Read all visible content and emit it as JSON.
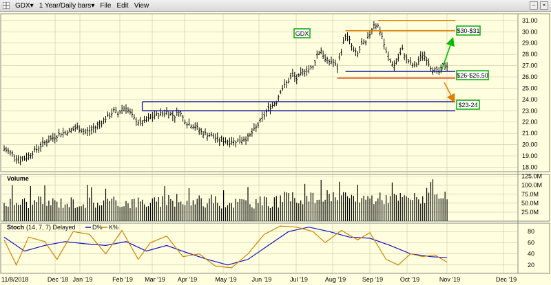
{
  "toolbar": {
    "symbol": "GDX",
    "period": "1 Year/Daily bars",
    "menus": [
      "File",
      "Edit",
      "View"
    ]
  },
  "colors": {
    "background": "#ffffe0",
    "price_bars": "#000000",
    "volume_bars": "#000000",
    "blue_line": "#1a1aa0",
    "orange_line": "#e08000",
    "red_line": "#e03000",
    "green_arrow": "#00bb00",
    "label_border": "#00aa00",
    "stoch_d": "#1010c0",
    "stoch_k": "#d08000"
  },
  "chart_data": [
    {
      "type": "ohlc",
      "title": "GDX",
      "x_labels": [
        "11/8/2018",
        "Dec '18",
        "Jan '19",
        "Feb '19",
        "Mar '19",
        "Apr '19",
        "May '19",
        "Jun '19",
        "Jul '19",
        "Aug '19",
        "Sep '19",
        "Oct '19",
        "Nov '19",
        "Dec '19"
      ],
      "y_ticks": [
        "18.00",
        "19.00",
        "20.00",
        "21.00",
        "22.00",
        "23.00",
        "24.00",
        "25.00",
        "26.00",
        "27.00",
        "28.00",
        "29.00",
        "30.00",
        "31.00"
      ],
      "ylim": [
        17.6,
        31.6
      ],
      "close_path": [
        [
          0,
          19.6
        ],
        [
          4,
          19.2
        ],
        [
          8,
          18.6
        ],
        [
          12,
          19.0
        ],
        [
          16,
          19.6
        ],
        [
          20,
          20.2
        ],
        [
          24,
          20.6
        ],
        [
          28,
          21.0
        ],
        [
          32,
          21.2
        ],
        [
          36,
          21.5
        ],
        [
          40,
          21.1
        ],
        [
          44,
          21.4
        ],
        [
          48,
          22.0
        ],
        [
          52,
          22.6
        ],
        [
          54,
          23.0
        ],
        [
          56,
          22.7
        ],
        [
          58,
          23.2
        ],
        [
          60,
          23.3
        ],
        [
          62,
          22.8
        ],
        [
          64,
          22.3
        ],
        [
          66,
          22.0
        ],
        [
          68,
          21.9
        ],
        [
          72,
          22.4
        ],
        [
          76,
          22.7
        ],
        [
          80,
          22.9
        ],
        [
          84,
          22.5
        ],
        [
          86,
          23.0
        ],
        [
          88,
          22.4
        ],
        [
          90,
          21.9
        ],
        [
          94,
          21.6
        ],
        [
          98,
          21.0
        ],
        [
          102,
          20.8
        ],
        [
          106,
          20.4
        ],
        [
          110,
          20.3
        ],
        [
          114,
          20.3
        ],
        [
          118,
          20.5
        ],
        [
          120,
          20.6
        ],
        [
          124,
          21.5
        ],
        [
          128,
          22.6
        ],
        [
          130,
          23.2
        ],
        [
          134,
          23.8
        ],
        [
          136,
          24.8
        ],
        [
          138,
          25.2
        ],
        [
          142,
          26.2
        ],
        [
          144,
          25.8
        ],
        [
          148,
          26.6
        ],
        [
          152,
          26.8
        ],
        [
          154,
          28.0
        ],
        [
          156,
          28.4
        ],
        [
          158,
          27.5
        ],
        [
          162,
          27.3
        ],
        [
          164,
          26.8
        ],
        [
          166,
          28.4
        ],
        [
          168,
          29.7
        ],
        [
          170,
          29.2
        ],
        [
          172,
          28.3
        ],
        [
          174,
          28.0
        ],
        [
          176,
          28.9
        ],
        [
          178,
          29.0
        ],
        [
          180,
          29.8
        ],
        [
          182,
          30.7
        ],
        [
          184,
          30.5
        ],
        [
          186,
          29.6
        ],
        [
          188,
          28.2
        ],
        [
          190,
          27.4
        ],
        [
          192,
          27.0
        ],
        [
          194,
          27.7
        ],
        [
          196,
          28.4
        ],
        [
          198,
          27.6
        ],
        [
          200,
          27.2
        ],
        [
          202,
          26.9
        ],
        [
          204,
          27.4
        ],
        [
          206,
          28.0
        ],
        [
          208,
          27.6
        ],
        [
          210,
          26.9
        ],
        [
          212,
          26.6
        ],
        [
          214,
          26.4
        ],
        [
          216,
          26.9
        ],
        [
          218,
          27.0
        ]
      ],
      "annotations": [
        {
          "text": "GDX",
          "kind": "title-box"
        },
        {
          "text": "$30-$31",
          "kind": "target-box"
        },
        {
          "text": "$26-$26.50",
          "kind": "target-box"
        },
        {
          "text": "$23-24",
          "kind": "target-box"
        }
      ],
      "levels": [
        {
          "color": "orange",
          "y": 30.1,
          "from_day": 168
        },
        {
          "color": "orange",
          "y": 31.0,
          "from_day": 184
        },
        {
          "color": "blue",
          "y": 26.5,
          "from_day": 168
        },
        {
          "color": "red",
          "y": 25.9,
          "from_day": 164
        },
        {
          "color": "blue",
          "y": 23.8,
          "from_day": 68
        },
        {
          "color": "blue",
          "y": 23.0,
          "from_day": 68
        }
      ]
    },
    {
      "type": "bar",
      "title": "Volume",
      "y_ticks": [
        "25.0M",
        "50.0M",
        "75.0M",
        "100.0M",
        "125.0M"
      ],
      "ylim": [
        0,
        130
      ],
      "note": "one volume bar per trading day, in millions"
    },
    {
      "type": "line",
      "title": "Stoch",
      "legend_params": "(14, 7, 7) Delayed",
      "legend_d": "D%",
      "legend_k": "K%",
      "y_ticks": [
        "20",
        "40",
        "60",
        "80"
      ],
      "ylim": [
        5,
        95
      ],
      "series": [
        {
          "name": "D%",
          "points": [
            [
              0,
              70
            ],
            [
              10,
              45
            ],
            [
              20,
              55
            ],
            [
              30,
              62
            ],
            [
              40,
              58
            ],
            [
              50,
              55
            ],
            [
              60,
              62
            ],
            [
              70,
              45
            ],
            [
              80,
              55
            ],
            [
              90,
              42
            ],
            [
              100,
              30
            ],
            [
              110,
              20
            ],
            [
              120,
              30
            ],
            [
              130,
              55
            ],
            [
              140,
              80
            ],
            [
              150,
              88
            ],
            [
              160,
              80
            ],
            [
              170,
              70
            ],
            [
              180,
              68
            ],
            [
              190,
              55
            ],
            [
              200,
              40
            ],
            [
              210,
              35
            ],
            [
              218,
              33
            ]
          ]
        },
        {
          "name": "K%",
          "points": [
            [
              0,
              65
            ],
            [
              6,
              20
            ],
            [
              12,
              70
            ],
            [
              20,
              62
            ],
            [
              26,
              30
            ],
            [
              34,
              80
            ],
            [
              42,
              75
            ],
            [
              50,
              40
            ],
            [
              58,
              82
            ],
            [
              66,
              30
            ],
            [
              72,
              60
            ],
            [
              80,
              72
            ],
            [
              88,
              35
            ],
            [
              96,
              40
            ],
            [
              104,
              18
            ],
            [
              112,
              15
            ],
            [
              120,
              40
            ],
            [
              128,
              75
            ],
            [
              136,
              90
            ],
            [
              144,
              88
            ],
            [
              152,
              80
            ],
            [
              158,
              60
            ],
            [
              166,
              82
            ],
            [
              174,
              65
            ],
            [
              180,
              78
            ],
            [
              188,
              30
            ],
            [
              194,
              20
            ],
            [
              200,
              40
            ],
            [
              206,
              35
            ],
            [
              212,
              38
            ],
            [
              218,
              25
            ]
          ]
        }
      ]
    }
  ]
}
